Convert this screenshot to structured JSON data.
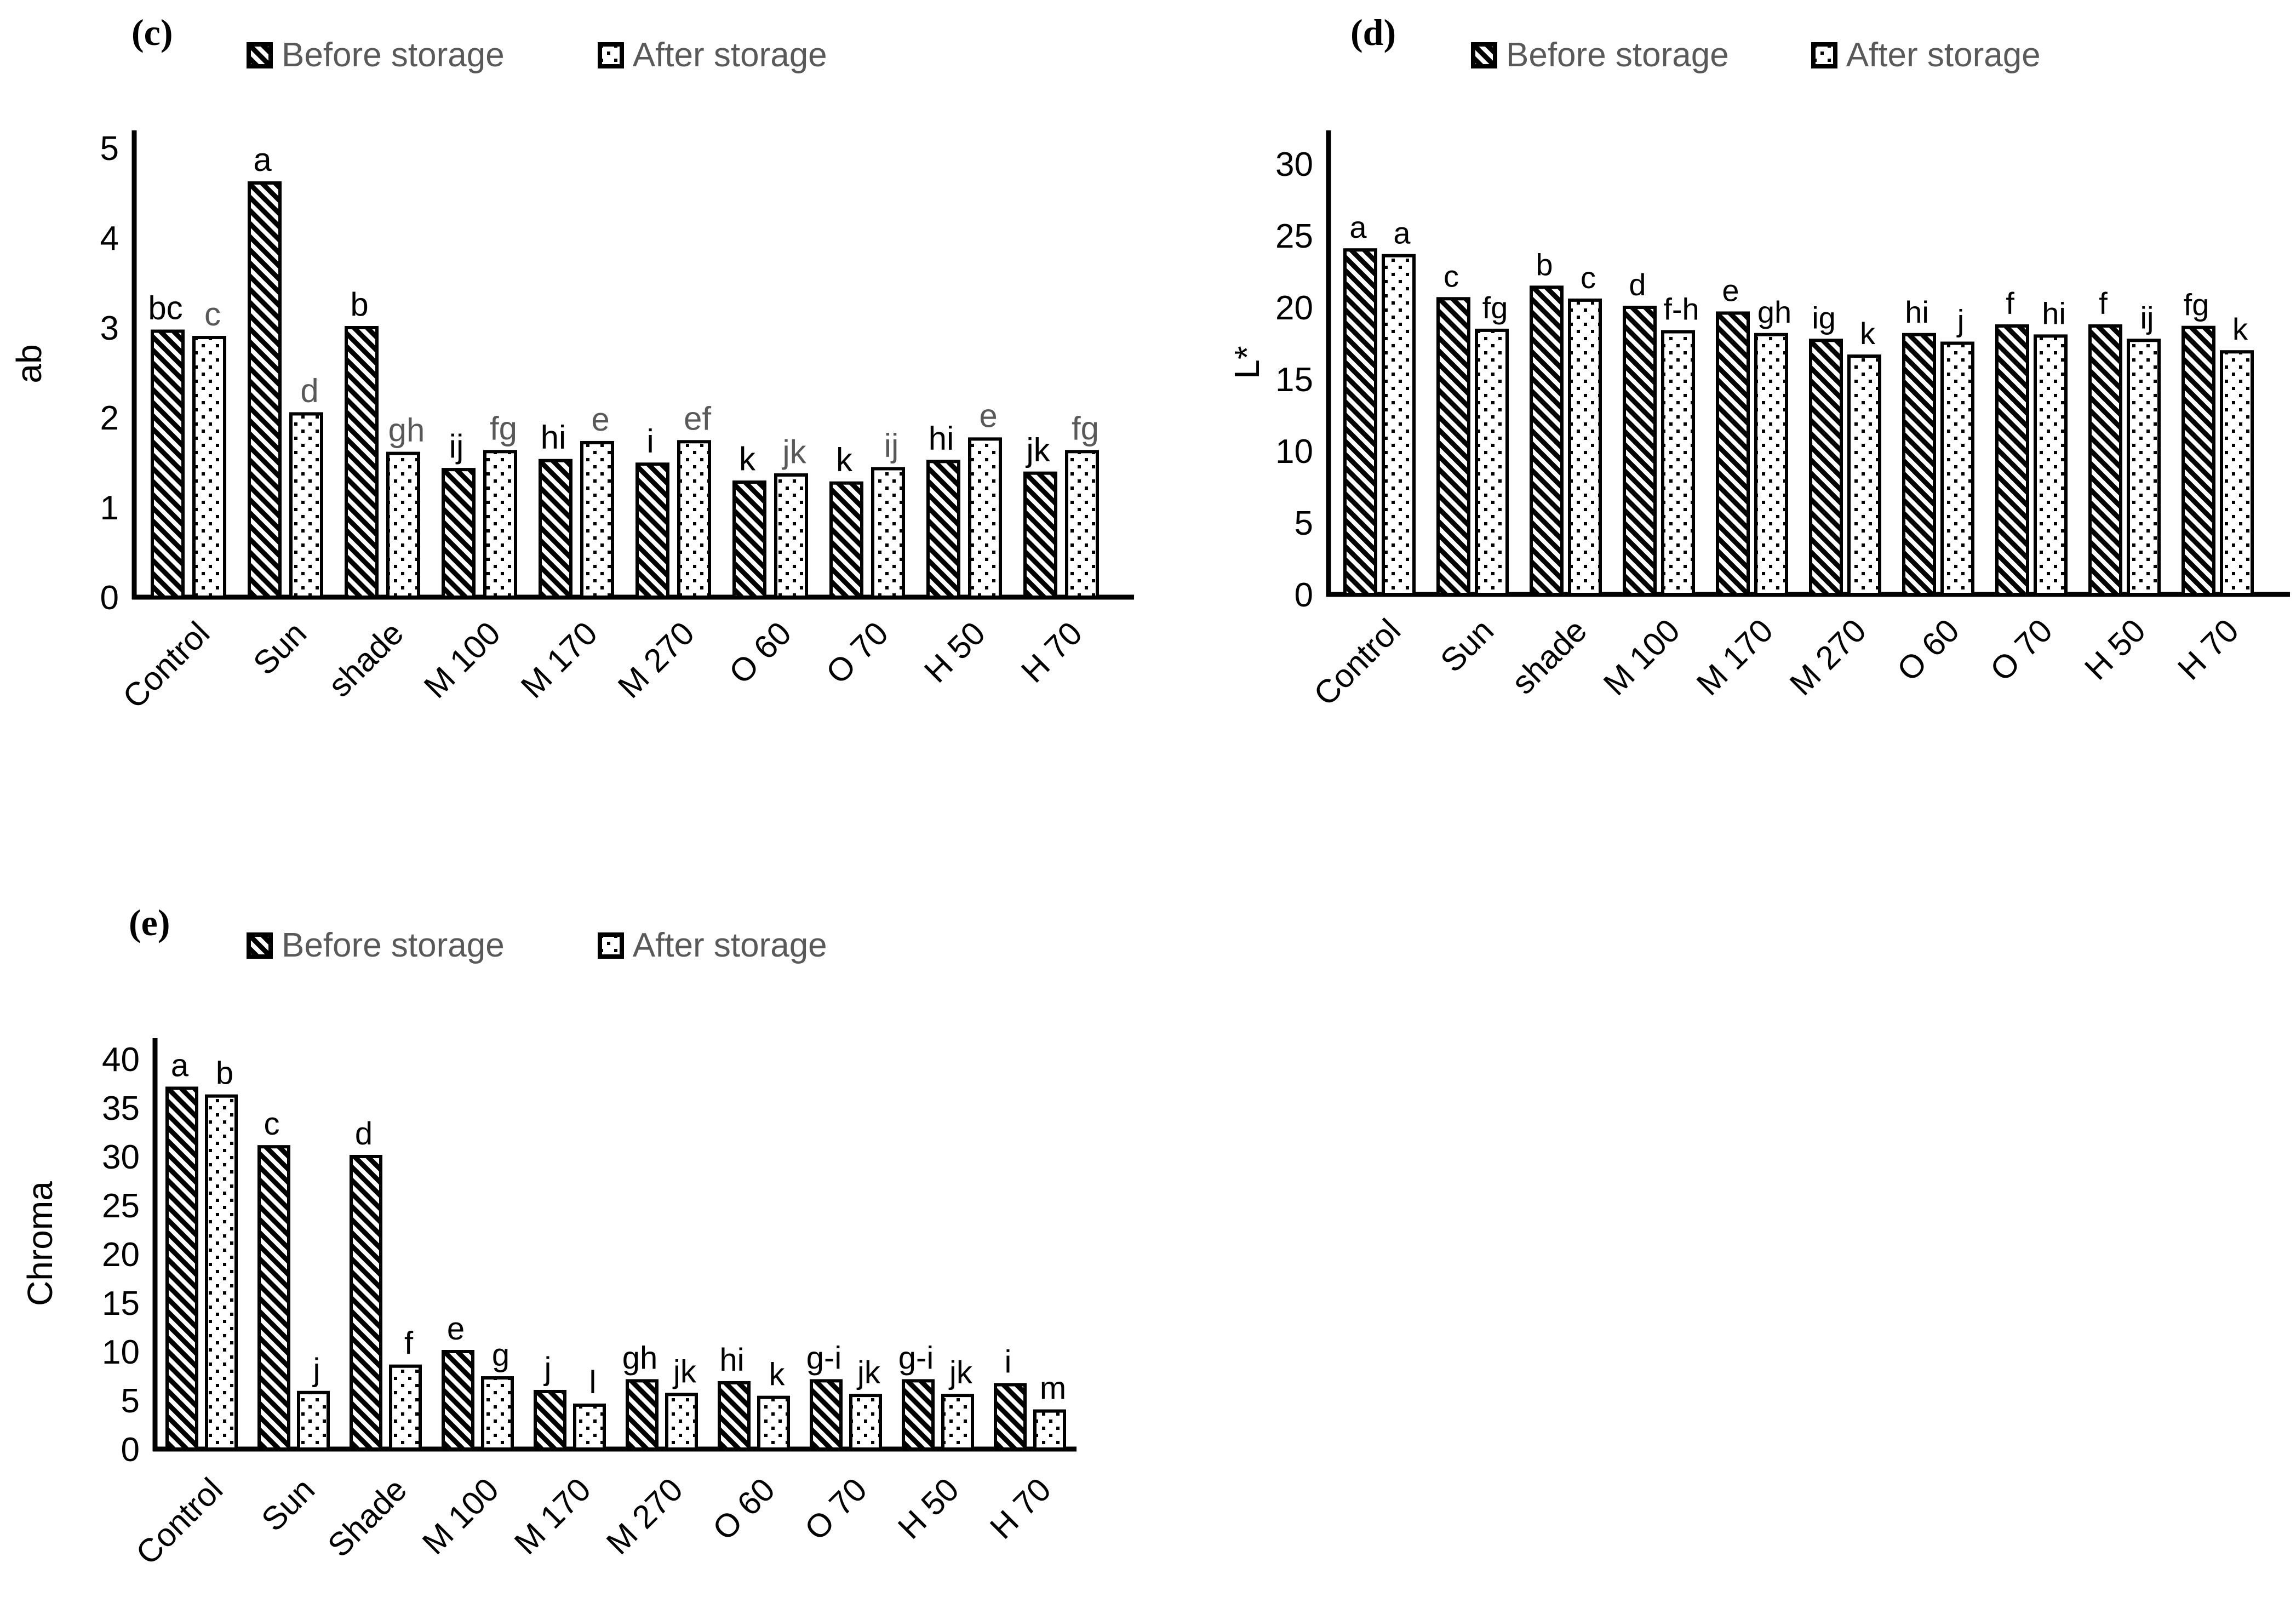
{
  "figure": {
    "type": "multi-panel-bar-figure",
    "background": "#ffffff"
  },
  "colors": {
    "bar_outline": "#000000",
    "axis_text": "#000000",
    "legend_text": "#595959",
    "panel_c_after_letter": "#595959"
  },
  "chart_data": [
    {
      "type": "bar",
      "panel_label": "(c)",
      "title": "",
      "xlabel": "",
      "ylabel": "ab",
      "ylim": [
        0,
        5
      ],
      "ytick_step": 1,
      "grid": false,
      "legend_position": "top",
      "legend": [
        "Before storage",
        "After storage"
      ],
      "categories": [
        "Control",
        "Sun",
        "shade",
        "M 100",
        "M 170",
        "M 270",
        "O 60",
        "O 70",
        "H 50",
        "H 70"
      ],
      "series": [
        {
          "name": "Before storage",
          "pattern": "diagonal-hatch",
          "values": [
            2.96,
            4.61,
            3.0,
            1.42,
            1.52,
            1.48,
            1.28,
            1.27,
            1.51,
            1.38
          ],
          "letters": [
            "bc",
            "a",
            "b",
            "ij",
            "hi",
            "i",
            "k",
            "k",
            "hi",
            "jk"
          ],
          "letter_color": "#000000"
        },
        {
          "name": "After storage",
          "pattern": "dotted",
          "values": [
            2.89,
            2.04,
            1.6,
            1.62,
            1.72,
            1.73,
            1.36,
            1.43,
            1.76,
            1.62
          ],
          "letters": [
            "c",
            "d",
            "gh",
            "fg",
            "e",
            "ef",
            "jk",
            "ij",
            "e",
            "fg"
          ],
          "letter_color": "#595959"
        }
      ]
    },
    {
      "type": "bar",
      "panel_label": "(d)",
      "title": "",
      "xlabel": "",
      "ylabel": "L*",
      "ylim": [
        0,
        30
      ],
      "ytick_step": 5,
      "grid": false,
      "legend_position": "top",
      "legend": [
        "Before storage",
        "After storage"
      ],
      "categories": [
        "Control",
        "Sun",
        "shade",
        "M 100",
        "M 170",
        "M 270",
        "O 60",
        "O 70",
        "H 50",
        "H 70"
      ],
      "series": [
        {
          "name": "Before storage",
          "pattern": "diagonal-hatch",
          "values": [
            24.0,
            20.6,
            21.4,
            20.0,
            19.6,
            17.7,
            18.1,
            18.7,
            18.7,
            18.6
          ],
          "letters": [
            "a",
            "c",
            "b",
            "d",
            "e",
            "ig",
            "hi",
            "f",
            "f",
            "fg"
          ],
          "letter_color": "#000000"
        },
        {
          "name": "After storage",
          "pattern": "dotted",
          "values": [
            23.6,
            18.4,
            20.5,
            18.3,
            18.1,
            16.6,
            17.5,
            18.0,
            17.7,
            16.9
          ],
          "letters": [
            "a",
            "fg",
            "c",
            "f-h",
            "gh",
            "k",
            "j",
            "hi",
            "ij",
            "k"
          ],
          "letter_color": "#000000"
        }
      ]
    },
    {
      "type": "bar",
      "panel_label": "(e)",
      "title": "",
      "xlabel": "",
      "ylabel": "Chroma",
      "ylim": [
        0,
        40
      ],
      "ytick_step": 5,
      "grid": false,
      "legend_position": "top",
      "legend": [
        "Before storage",
        "After storage"
      ],
      "categories": [
        "Control",
        "Sun",
        "Shade",
        "M 100",
        "M 170",
        "M 270",
        "O 60",
        "O 70",
        "H 50",
        "H 70"
      ],
      "series": [
        {
          "name": "Before storage",
          "pattern": "diagonal-hatch",
          "values": [
            37.0,
            31.0,
            30.0,
            10.0,
            5.9,
            7.0,
            6.8,
            7.0,
            7.0,
            6.6
          ],
          "letters": [
            "a",
            "c",
            "d",
            "e",
            "j",
            "gh",
            "hi",
            "g-i",
            "g-i",
            "i"
          ],
          "letter_color": "#000000"
        },
        {
          "name": "After storage",
          "pattern": "dotted",
          "values": [
            36.2,
            5.8,
            8.5,
            7.3,
            4.5,
            5.6,
            5.3,
            5.5,
            5.5,
            3.9
          ],
          "letters": [
            "b",
            "j",
            "f",
            "g",
            "l",
            "jk",
            "k",
            "jk",
            "jk",
            "m"
          ],
          "letter_color": "#000000"
        }
      ]
    }
  ]
}
